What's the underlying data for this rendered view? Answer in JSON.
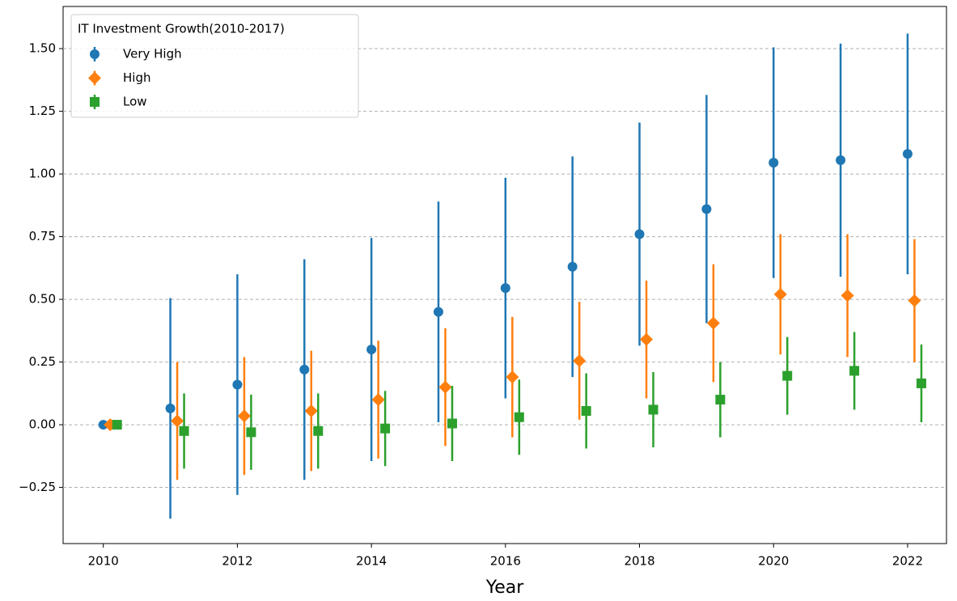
{
  "chart_data": {
    "type": "errorbar",
    "xlabel": "Year",
    "legend_title": "IT Investment Growth(2010-2017)",
    "legend": "upper left",
    "grid": true,
    "x": [
      2010,
      2011,
      2012,
      2013,
      2014,
      2015,
      2016,
      2017,
      2018,
      2019,
      2020,
      2021,
      2022
    ],
    "xlim": [
      2009.4,
      2022.58
    ],
    "xticks": [
      2010,
      2012,
      2014,
      2016,
      2018,
      2020,
      2022
    ],
    "ylim": [
      -0.474,
      1.668
    ],
    "yticks": [
      {
        "value": -0.25,
        "label": "−0.25"
      },
      {
        "value": 0,
        "label": "0.00"
      },
      {
        "value": 0.25,
        "label": "0.25"
      },
      {
        "value": 0.5,
        "label": "0.50"
      },
      {
        "value": 0.75,
        "label": "0.75"
      },
      {
        "value": 1,
        "label": "1.00"
      },
      {
        "value": 1.25,
        "label": "1.25"
      },
      {
        "value": 1.5,
        "label": "1.50"
      }
    ],
    "series": [
      {
        "name": "Very High",
        "color": "#1f77b4",
        "marker": "circle",
        "values": [
          0,
          0.065,
          0.16,
          0.22,
          0.3,
          0.45,
          0.545,
          0.63,
          0.76,
          0.86,
          1.045,
          1.055,
          1.08
        ],
        "errors": [
          0,
          0.44,
          0.44,
          0.44,
          0.445,
          0.44,
          0.44,
          0.44,
          0.445,
          0.455,
          0.46,
          0.465,
          0.48
        ]
      },
      {
        "name": "High",
        "color": "#ff7f0e",
        "marker": "diamond",
        "values": [
          0,
          0.015,
          0.035,
          0.055,
          0.1,
          0.15,
          0.19,
          0.255,
          0.34,
          0.405,
          0.52,
          0.515,
          0.495
        ],
        "errors": [
          0.02,
          0.235,
          0.235,
          0.24,
          0.235,
          0.235,
          0.24,
          0.235,
          0.235,
          0.235,
          0.24,
          0.245,
          0.245
        ]
      },
      {
        "name": "Low",
        "color": "#2ca02c",
        "marker": "square",
        "values": [
          0,
          -0.025,
          -0.03,
          -0.025,
          -0.015,
          0.005,
          0.03,
          0.055,
          0.06,
          0.1,
          0.195,
          0.215,
          0.165
        ],
        "errors": [
          0,
          0.15,
          0.15,
          0.15,
          0.15,
          0.15,
          0.15,
          0.15,
          0.15,
          0.15,
          0.155,
          0.155,
          0.155
        ]
      }
    ]
  }
}
